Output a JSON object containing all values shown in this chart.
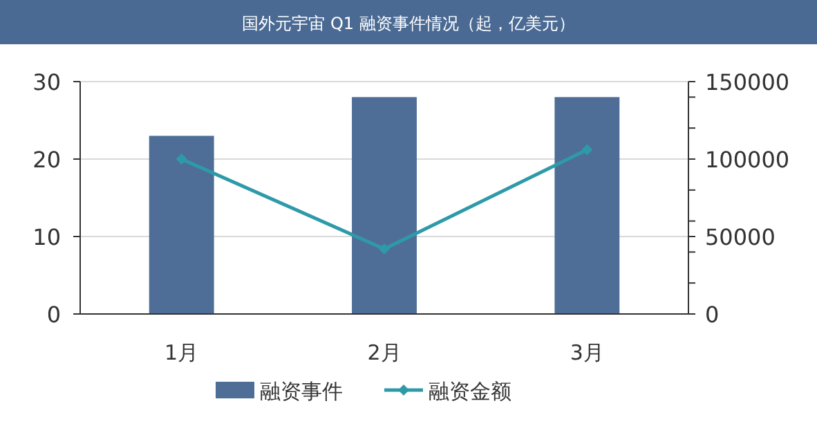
{
  "chart_data": {
    "type": "bar",
    "title": "国外元宇宙 Q1 融资事件情况（起，亿美元）",
    "categories": [
      "1月",
      "2月",
      "3月"
    ],
    "series": [
      {
        "name": "融资事件",
        "color": "#4e6e97",
        "values": [
          23,
          28,
          28
        ]
      },
      {
        "name": "融资金额",
        "type": "line",
        "axis": "y2",
        "color": "#2e9aa8",
        "values": [
          100000,
          42000,
          106000
        ]
      }
    ],
    "ylim": [
      0,
      30
    ],
    "yticks": [
      0,
      10,
      20,
      30
    ],
    "y2lim": [
      0,
      150000
    ],
    "y2ticks": [
      0,
      {
        "value": 20000,
        "label": null
      },
      {
        "value": 40000,
        "label": null
      },
      50000,
      {
        "value": 60000,
        "label": null
      },
      {
        "value": 80000,
        "label": null
      },
      100000,
      {
        "value": 120000,
        "label": null
      },
      {
        "value": 140000,
        "label": null
      },
      150000
    ],
    "grid": "y",
    "legend": "bottom",
    "marker": "diamond",
    "line_style": "solid"
  }
}
